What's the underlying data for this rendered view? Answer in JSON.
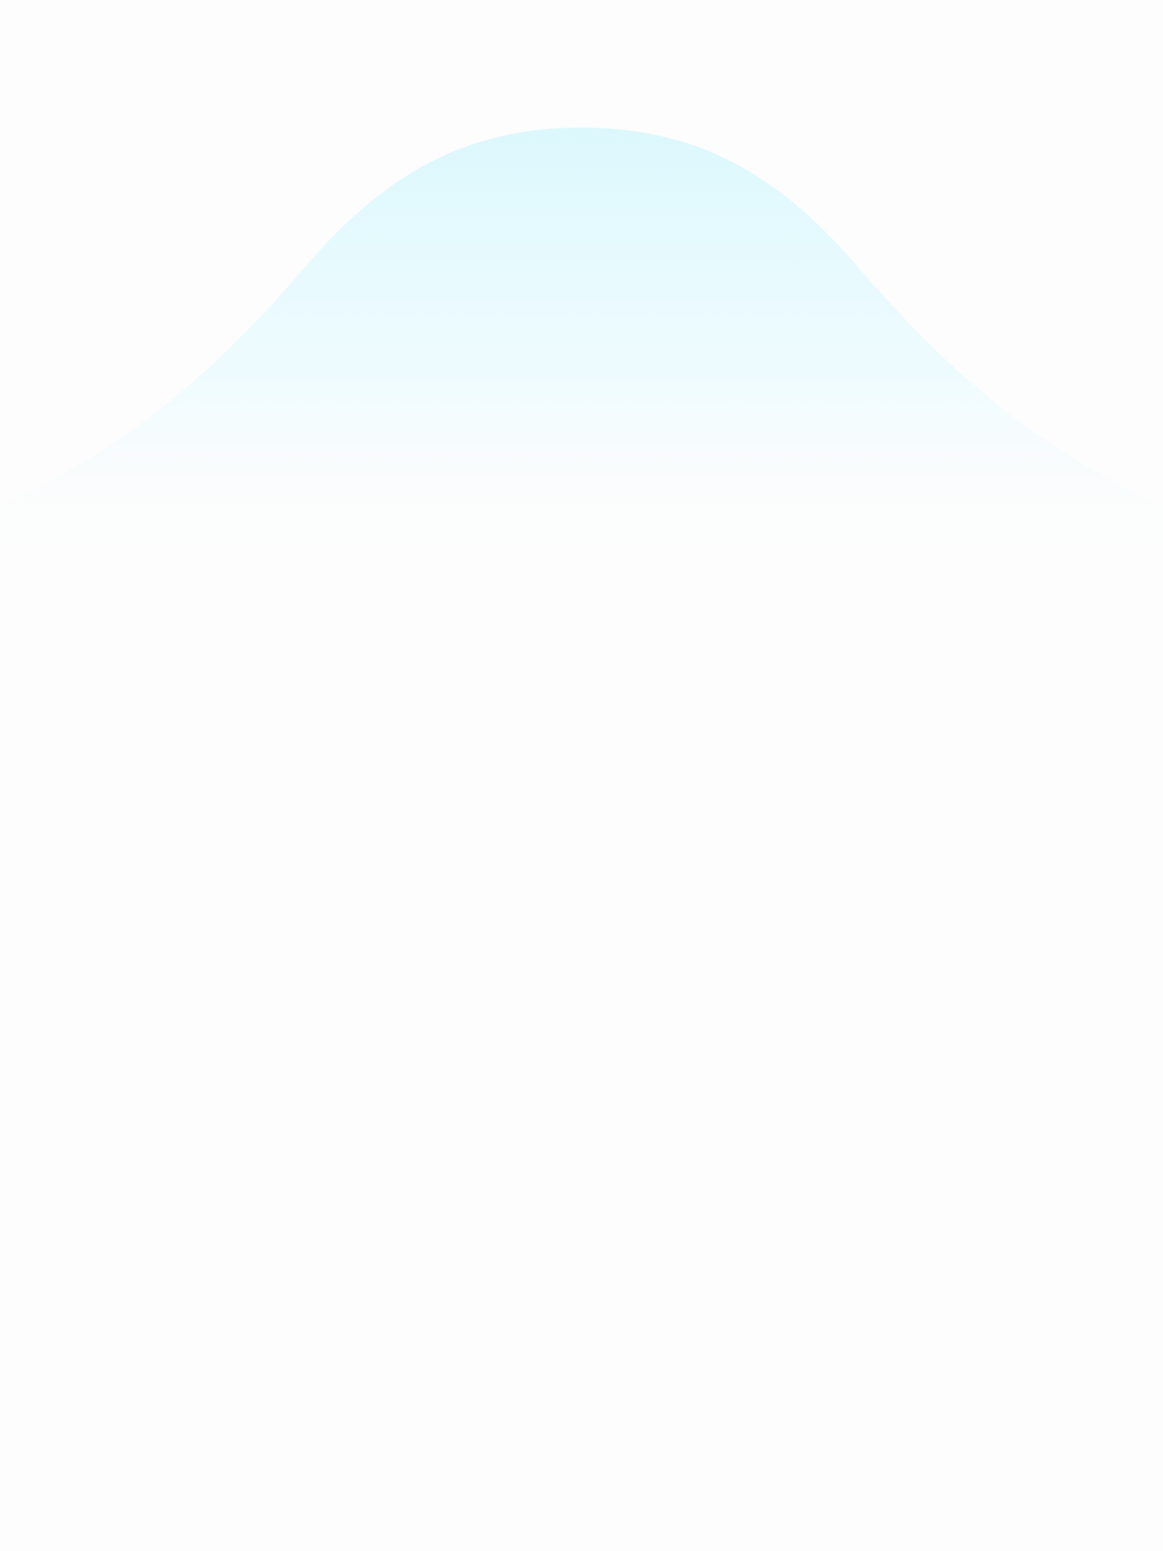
{
  "screen": {
    "background_color": "#fdfdfd",
    "accent_color": "#dcf8fd"
  }
}
